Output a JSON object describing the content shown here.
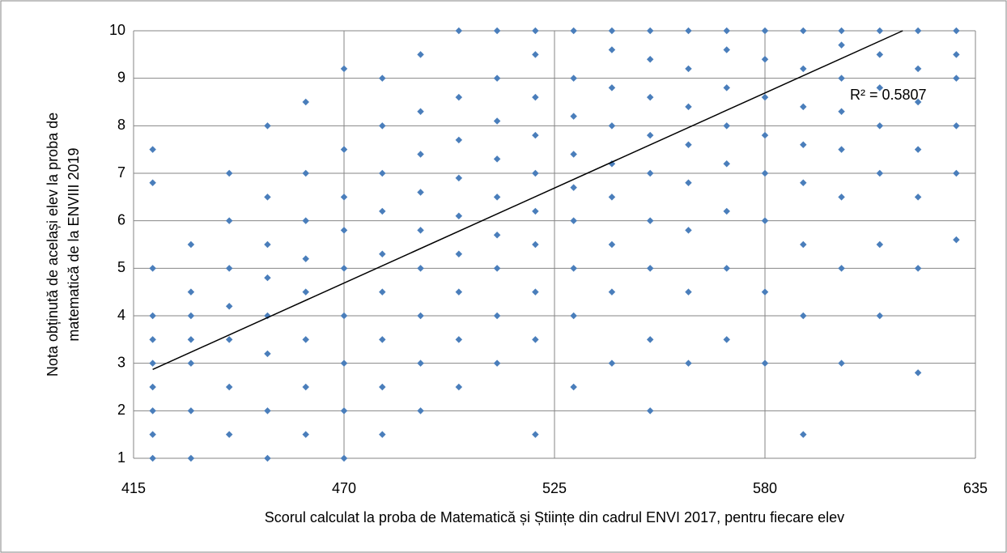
{
  "chart_data": {
    "type": "scatter",
    "x_label": "Scorul calculat la proba de Matematică și Științe din cadrul ENVI 2017, pentru fiecare elev",
    "y_label": [
      "Nota obținută de același elev la proba de",
      "matematică de la ENVIII 2019"
    ],
    "color": "#4a7ebb",
    "xlim": [
      415,
      635
    ],
    "xticks": [
      415,
      470,
      525,
      580,
      635
    ],
    "ylim": [
      1,
      10
    ],
    "yticks": [
      1,
      2,
      3,
      4,
      5,
      6,
      7,
      8,
      9,
      10
    ],
    "grid": true,
    "x": [
      420,
      420,
      420,
      420,
      420,
      420,
      420,
      420,
      420,
      420,
      430,
      430,
      430,
      430,
      430,
      430,
      430,
      440,
      440,
      440,
      440,
      440,
      440,
      440,
      450,
      450,
      450,
      450,
      450,
      450,
      450,
      450,
      460,
      460,
      460,
      460,
      460,
      460,
      460,
      460,
      470,
      470,
      470,
      470,
      470,
      470,
      470,
      470,
      470,
      480,
      480,
      480,
      480,
      480,
      480,
      480,
      480,
      480,
      490,
      490,
      490,
      490,
      490,
      490,
      490,
      490,
      490,
      500,
      500,
      500,
      500,
      500,
      500,
      500,
      500,
      500,
      510,
      510,
      510,
      510,
      510,
      510,
      510,
      510,
      510,
      520,
      520,
      520,
      520,
      520,
      520,
      520,
      520,
      520,
      520,
      530,
      530,
      530,
      530,
      530,
      530,
      530,
      530,
      530,
      540,
      540,
      540,
      540,
      540,
      540,
      540,
      540,
      540,
      550,
      550,
      550,
      550,
      550,
      550,
      550,
      550,
      550,
      560,
      560,
      560,
      560,
      560,
      560,
      560,
      560,
      570,
      570,
      570,
      570,
      570,
      570,
      570,
      570,
      580,
      580,
      580,
      580,
      580,
      580,
      580,
      580,
      590,
      590,
      590,
      590,
      590,
      590,
      590,
      590,
      600,
      600,
      600,
      600,
      600,
      600,
      600,
      600,
      610,
      610,
      610,
      610,
      610,
      610,
      610,
      620,
      620,
      620,
      620,
      620,
      620,
      620,
      630,
      630,
      630,
      630,
      630,
      630
    ],
    "values": [
      1,
      1.5,
      2,
      2.5,
      3,
      3.5,
      4,
      5,
      6.8,
      7.5,
      1,
      2,
      3,
      3.5,
      4,
      4.5,
      5.5,
      1.5,
      2.5,
      3.5,
      4.2,
      5,
      6,
      7,
      1,
      2,
      3.2,
      4,
      4.8,
      5.5,
      6.5,
      8,
      1.5,
      2.5,
      3.5,
      4.5,
      5.2,
      6,
      7,
      8.5,
      1,
      2,
      3,
      4,
      5,
      5.8,
      6.5,
      7.5,
      9.2,
      1.5,
      2.5,
      3.5,
      4.5,
      5.3,
      6.2,
      7,
      8,
      9,
      2,
      3,
      4,
      5,
      5.8,
      6.6,
      7.4,
      8.3,
      9.5,
      2.5,
      3.5,
      4.5,
      5.3,
      6.1,
      6.9,
      7.7,
      8.6,
      10,
      3,
      4,
      5,
      5.7,
      6.5,
      7.3,
      8.1,
      9,
      10,
      1.5,
      3.5,
      4.5,
      5.5,
      6.2,
      7,
      7.8,
      8.6,
      9.5,
      10,
      2.5,
      4,
      5,
      6,
      6.7,
      7.4,
      8.2,
      9,
      10,
      3,
      4.5,
      5.5,
      6.5,
      7.2,
      8,
      8.8,
      9.6,
      10,
      2,
      3.5,
      5,
      6,
      7,
      7.8,
      8.6,
      9.4,
      10,
      3,
      4.5,
      5.8,
      6.8,
      7.6,
      8.4,
      9.2,
      10,
      3.5,
      5,
      6.2,
      7.2,
      8,
      8.8,
      9.6,
      10,
      3,
      4.5,
      6,
      7,
      7.8,
      8.6,
      9.4,
      10,
      1.5,
      4,
      5.5,
      6.8,
      7.6,
      8.4,
      9.2,
      10,
      3,
      5,
      6.5,
      7.5,
      8.3,
      9,
      9.7,
      10,
      4,
      5.5,
      7,
      8,
      8.8,
      9.5,
      10,
      2.8,
      5,
      6.5,
      7.5,
      8.5,
      9.2,
      10,
      5.6,
      7,
      8,
      9,
      9.5,
      10
    ],
    "trendline": {
      "x": [
        420,
        616
      ],
      "values": [
        2.87,
        10
      ],
      "color": "#000000",
      "label": "R² = 0.5807"
    }
  }
}
